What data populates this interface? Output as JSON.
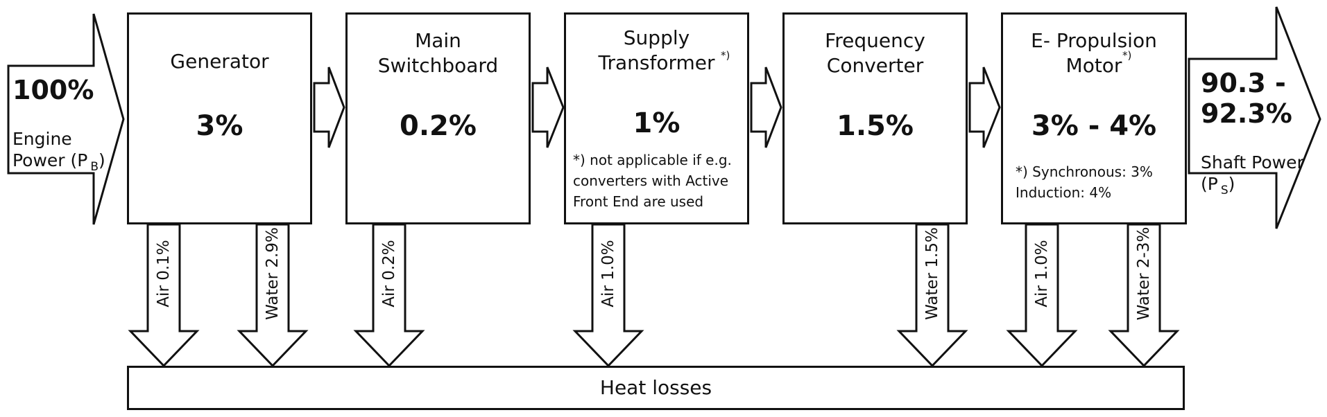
{
  "input": {
    "percent": "100%",
    "label": "Engine\nPower (P",
    "subscript": "B",
    "close": ")"
  },
  "output": {
    "percent": "90.3 -\n92.3%",
    "label": "Shaft Power\n(P",
    "subscript": "S",
    "close": ")"
  },
  "stages": [
    {
      "title": "Generator",
      "value": "3%"
    },
    {
      "title": "Main\nSwitchboard",
      "value": "0.2%"
    },
    {
      "title": "Supply\nTransformer",
      "title_mark": "*)",
      "value": "1%",
      "note": "*) not applicable if  e.g.\nconverters  with Active\nFront End are used"
    },
    {
      "title": "Frequency\nConverter",
      "value": "1.5%"
    },
    {
      "title": "E- Propulsion\nMotor",
      "title_mark": "*)",
      "value": "3% - 4%",
      "note": "*)  Synchronous:  3%\n     Induction: 4%"
    }
  ],
  "losses": [
    {
      "label": "Air  0.1%"
    },
    {
      "label": "Water 2.9%"
    },
    {
      "label": "Air  0.2%"
    },
    {
      "label": "Air  1.0%"
    },
    {
      "label": "Water  1.5%"
    },
    {
      "label": "Air  1.0%"
    },
    {
      "label": "Water  2-3%"
    }
  ],
  "heat": {
    "label": "Heat losses"
  }
}
